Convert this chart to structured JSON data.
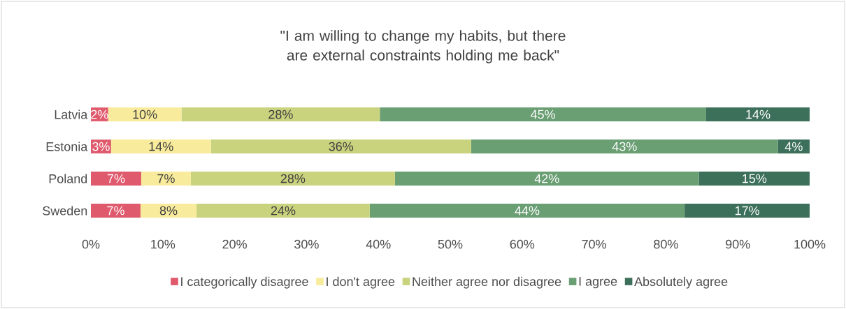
{
  "chart_data": {
    "type": "bar",
    "orientation": "horizontal",
    "stacked": true,
    "title": "\"I am willing to change my habits, but there are external constraints holding me back\"",
    "categories": [
      "Latvia",
      "Estonia",
      "Poland",
      "Sweden"
    ],
    "series": [
      {
        "name": "I categorically disagree",
        "color": "#e05a6d",
        "values": [
          2.4,
          2.8,
          7.0,
          6.9
        ],
        "value_labels": [
          "2%",
          "3%",
          "7%",
          "7%"
        ]
      },
      {
        "name": "I don't agree",
        "color": "#f9eb9c",
        "values": [
          10.2,
          13.9,
          6.9,
          7.8
        ],
        "value_labels": [
          "10%",
          "14%",
          "7%",
          "8%"
        ]
      },
      {
        "name": "Neither agree nor disagree",
        "color": "#c9d27d",
        "values": [
          27.6,
          36.2,
          28.4,
          24.1
        ],
        "value_labels": [
          "28%",
          "36%",
          "28%",
          "24%"
        ]
      },
      {
        "name": "I agree",
        "color": "#6a9e73",
        "values": [
          45.4,
          42.7,
          42.3,
          43.8
        ],
        "value_labels": [
          "45%",
          "43%",
          "42%",
          "44%"
        ]
      },
      {
        "name": "Absolutely agree",
        "color": "#3d705b",
        "values": [
          14.4,
          4.4,
          15.4,
          17.4
        ],
        "value_labels": [
          "14%",
          "4%",
          "15%",
          "17%"
        ]
      }
    ],
    "xlim": [
      0,
      100
    ],
    "xticks": [
      {
        "value": 0,
        "label": "0%"
      },
      {
        "value": 10,
        "label": "10%"
      },
      {
        "value": 20,
        "label": "20%"
      },
      {
        "value": 30,
        "label": "30%"
      },
      {
        "value": 40,
        "label": "40%"
      },
      {
        "value": 50,
        "label": "50%"
      },
      {
        "value": 60,
        "label": "60%"
      },
      {
        "value": 70,
        "label": "70%"
      },
      {
        "value": 80,
        "label": "80%"
      },
      {
        "value": 90,
        "label": "90%"
      },
      {
        "value": 100,
        "label": "100%"
      }
    ],
    "grid": false,
    "legend": "bottom"
  }
}
